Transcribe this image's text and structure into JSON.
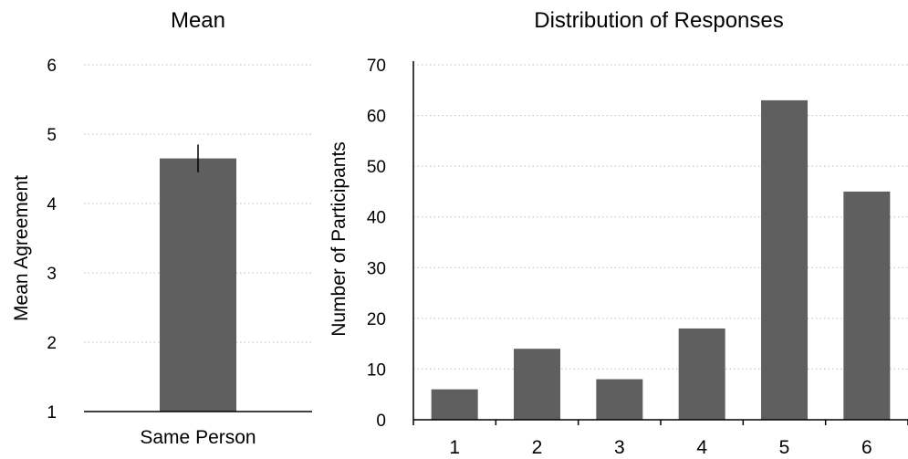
{
  "chart_data": [
    {
      "type": "bar",
      "title": "Mean",
      "ylabel": "Mean Agreement",
      "xlabel": "",
      "categories": [
        "Same Person"
      ],
      "values": [
        4.65
      ],
      "error": [
        0.2
      ],
      "ylim": [
        1,
        6
      ],
      "yticks": [
        "1",
        "2",
        "3",
        "4",
        "5",
        "6"
      ],
      "grid": true,
      "bar_color": "#5f5f5f"
    },
    {
      "type": "bar",
      "title": "Distribution of Responses",
      "ylabel": "Number of Participants",
      "xlabel": "",
      "categories": [
        "1",
        "2",
        "3",
        "4",
        "5",
        "6"
      ],
      "values": [
        6,
        14,
        8,
        18,
        63,
        45
      ],
      "ylim": [
        0,
        70
      ],
      "yticks": [
        "0",
        "10",
        "20",
        "30",
        "40",
        "50",
        "60",
        "70"
      ],
      "grid": true,
      "bar_color": "#5f5f5f"
    }
  ]
}
